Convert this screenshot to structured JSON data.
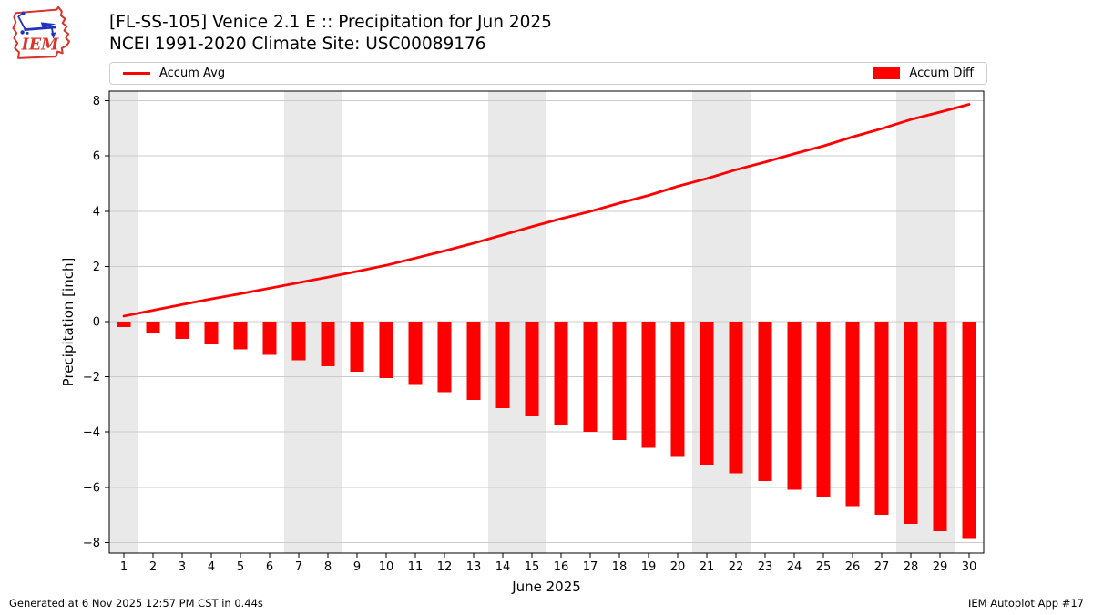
{
  "header": {
    "title_line1": "[FL-SS-105] Venice 2.1 E :: Precipitation for Jun 2025",
    "title_line2": "NCEI 1991-2020 Climate Site: USC00089176",
    "logo_text": "IEM"
  },
  "legend": {
    "avg_label": "Accum Avg",
    "diff_label": "Accum Diff"
  },
  "footer": {
    "generated_text": "Generated at 6 Nov 2025 12:57 PM CST in 0.44s",
    "app_text": "IEM Autoplot App #17"
  },
  "colors": {
    "series_red": "#ff0000",
    "grid": "#cbcbcb",
    "weekend_band": "#e9e9e9",
    "spine": "#000000",
    "legend_border": "#cccccc",
    "logo_red": "#d8352b",
    "logo_blue": "#2233bb"
  },
  "chart_data": {
    "type": "line+bar",
    "title": "[FL-SS-105] Venice 2.1 E :: Precipitation for Jun 2025",
    "subtitle": "NCEI 1991-2020 Climate Site: USC00089176",
    "xlabel": "June 2025",
    "ylabel": "Precipitation [inch]",
    "x": [
      1,
      2,
      3,
      4,
      5,
      6,
      7,
      8,
      9,
      10,
      11,
      12,
      13,
      14,
      15,
      16,
      17,
      18,
      19,
      20,
      21,
      22,
      23,
      24,
      25,
      26,
      27,
      28,
      29,
      30
    ],
    "series": [
      {
        "name": "Accum Avg",
        "type": "line",
        "color": "#ff0000",
        "values": [
          0.2,
          0.41,
          0.62,
          0.82,
          1.01,
          1.21,
          1.41,
          1.61,
          1.82,
          2.04,
          2.3,
          2.56,
          2.84,
          3.14,
          3.44,
          3.73,
          3.99,
          4.29,
          4.57,
          4.9,
          5.18,
          5.5,
          5.78,
          6.08,
          6.36,
          6.69,
          6.99,
          7.32,
          7.59,
          7.87
        ]
      },
      {
        "name": "Accum Diff",
        "type": "bar",
        "color": "#ff0000",
        "values": [
          -0.2,
          -0.41,
          -0.62,
          -0.82,
          -1.01,
          -1.21,
          -1.41,
          -1.61,
          -1.82,
          -2.04,
          -2.3,
          -2.56,
          -2.84,
          -3.14,
          -3.44,
          -3.73,
          -3.99,
          -4.29,
          -4.57,
          -4.9,
          -5.18,
          -5.5,
          -5.78,
          -6.08,
          -6.36,
          -6.69,
          -6.99,
          -7.32,
          -7.59,
          -7.87
        ]
      }
    ],
    "ylim": [
      -8.38,
      8.35
    ],
    "yticks": [
      -8,
      -6,
      -4,
      -2,
      0,
      2,
      4,
      6,
      8
    ],
    "weekend_bands": [
      [
        0.5,
        1.5
      ],
      [
        6.5,
        8.5
      ],
      [
        13.5,
        15.5
      ],
      [
        20.5,
        22.5
      ],
      [
        27.5,
        29.5
      ]
    ],
    "grid": "horizontal",
    "legend_position": "top"
  }
}
